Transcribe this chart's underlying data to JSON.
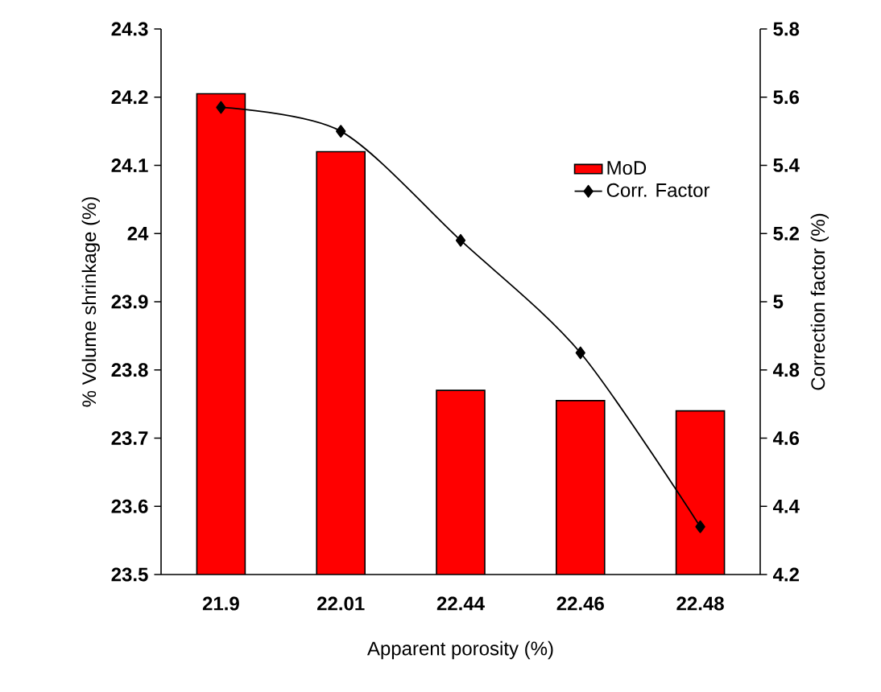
{
  "chart_data": {
    "type": "bar",
    "xlabel": "Apparent porosity (%)",
    "ylabel": "% Volume shrinkage (%)",
    "y2label": "Correction factor (%)",
    "categories": [
      "21.9",
      "22.01",
      "22.44",
      "22.46",
      "22.48"
    ],
    "series": [
      {
        "name": "MoD",
        "type": "bar",
        "color": "#ff0000",
        "values": [
          24.205,
          24.12,
          23.77,
          23.755,
          23.74
        ]
      },
      {
        "name": "Corr. Factor",
        "type": "line",
        "axis": "y2",
        "color": "#000000",
        "marker": "diamond",
        "line_style": "solid",
        "values": [
          5.57,
          5.5,
          5.18,
          4.85,
          4.34
        ]
      }
    ],
    "ylim": [
      23.5,
      24.3
    ],
    "yticks": [
      23.5,
      23.6,
      23.7,
      23.8,
      23.9,
      24,
      24.1,
      24.2,
      24.3
    ],
    "y2lim": [
      4.2,
      5.8
    ],
    "y2ticks": [
      4.2,
      4.4,
      4.6,
      4.8,
      5,
      5.2,
      5.4,
      5.6,
      5.8
    ],
    "legend": "top right"
  }
}
